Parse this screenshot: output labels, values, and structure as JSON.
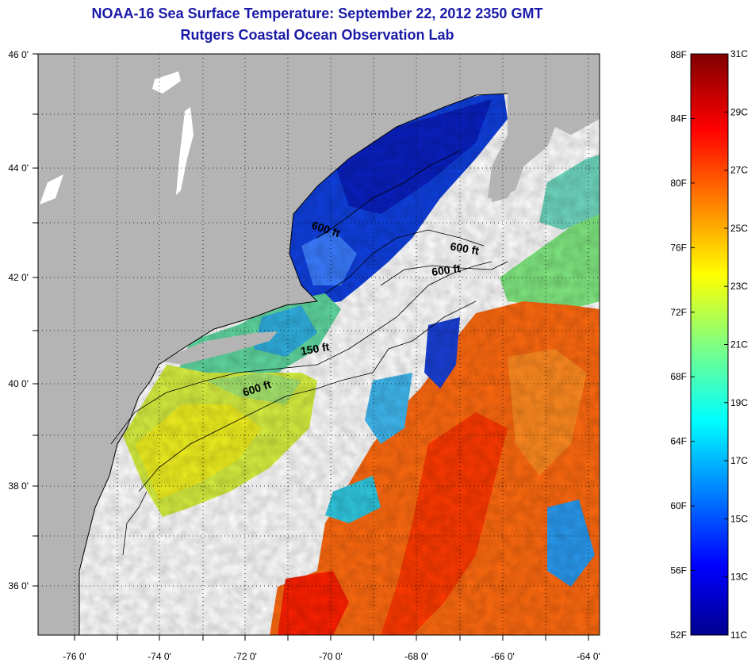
{
  "title": "NOAA-16 Sea Surface Temperature:  September 22, 2012 2350 GMT",
  "subtitle": "Rutgers Coastal Ocean Observation Lab",
  "map": {
    "lon_ticks": [
      "-76 0'",
      "-74 0'",
      "-72 0'",
      "-70 0'",
      "-68 0'",
      "-66 0'",
      "-64 0'"
    ],
    "lat_ticks": [
      "46 0'",
      "44 0'",
      "42 0'",
      "40 0'",
      "38 0'",
      "36 0'"
    ],
    "contour_labels": [
      "600 ft",
      "600 ft",
      "600 ft",
      "150 ft",
      "600 ft"
    ],
    "colors": {
      "land": "#b4b4b4",
      "no_data": "#ffffff",
      "coast": "#000000"
    }
  },
  "colorbar": {
    "fahrenheit": [
      "88F",
      "84F",
      "80F",
      "76F",
      "72F",
      "68F",
      "64F",
      "60F",
      "56F",
      "52F"
    ],
    "celsius": [
      "31C",
      "29C",
      "27C",
      "25C",
      "23C",
      "21C",
      "19C",
      "17C",
      "15C",
      "13C",
      "11C"
    ],
    "range_c": [
      11,
      31
    ],
    "range_f": [
      52,
      88
    ],
    "colormap": "jet"
  }
}
